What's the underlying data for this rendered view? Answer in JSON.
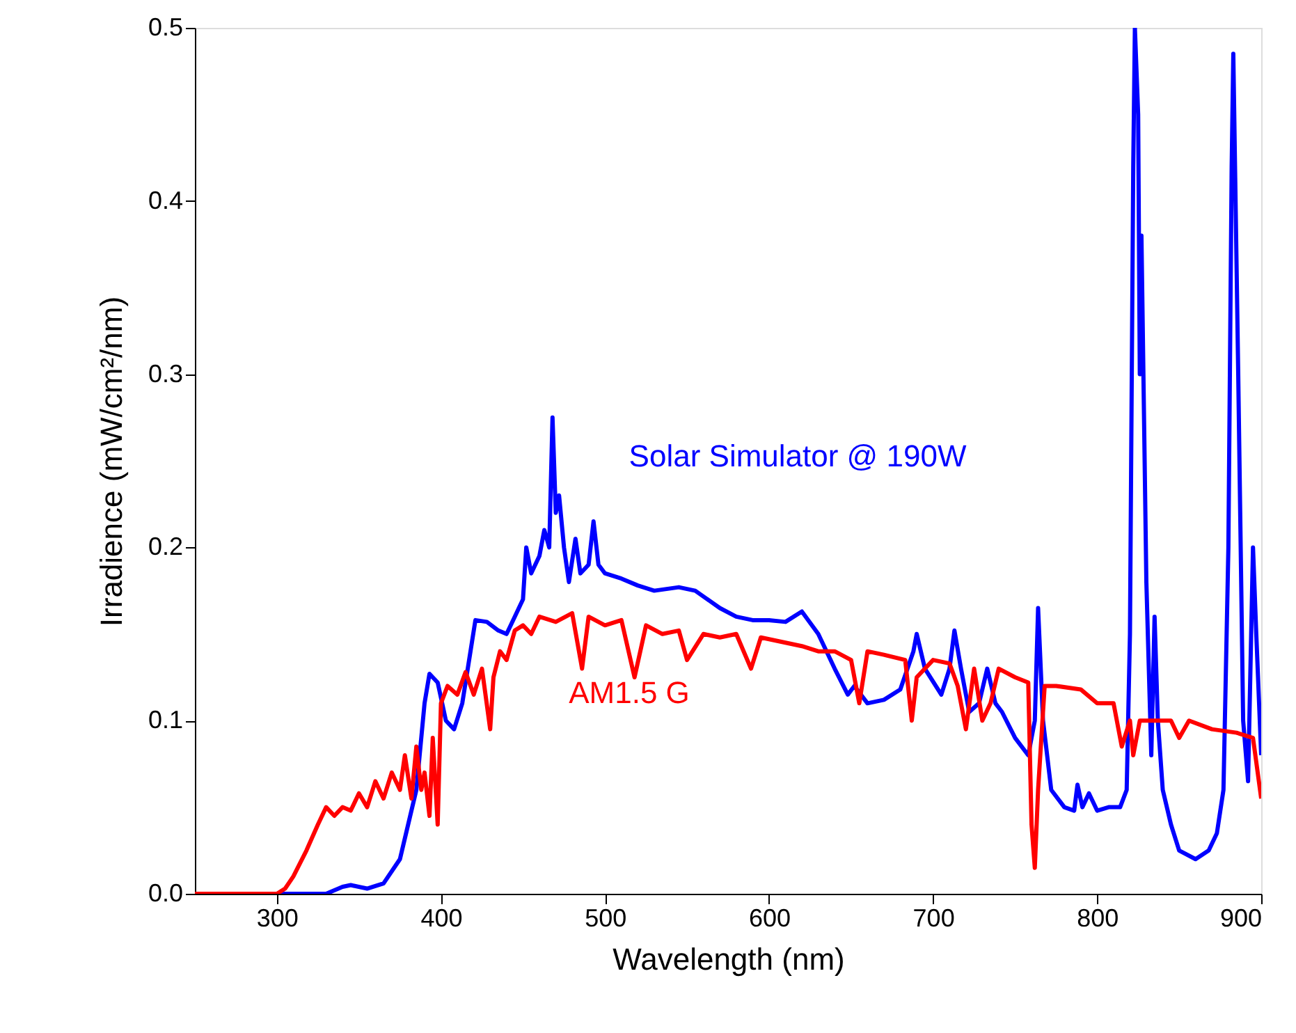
{
  "chart_data": {
    "type": "line",
    "xlabel": "Wavelength (nm)",
    "ylabel": "Irradience (mW/cm²/nm)",
    "xlim": [
      250,
      900
    ],
    "xticks": [
      300,
      400,
      500,
      600,
      700,
      800,
      900
    ],
    "ylim": [
      0,
      0.5
    ],
    "yticks": [
      {
        "value": 0,
        "label": "0.0"
      },
      0.1,
      0.2,
      0.3,
      0.4,
      0.5
    ],
    "grid": false,
    "legend": false,
    "marker": "none",
    "line_style": "solid",
    "series": [
      {
        "name": "Solar Simulator @ 190W",
        "color": "#0000ff",
        "x": [
          250,
          330,
          340,
          345,
          355,
          365,
          375,
          385,
          390,
          393,
          398,
          403,
          408,
          413,
          418,
          421,
          428,
          435,
          440,
          445,
          450,
          452,
          455,
          460,
          463,
          466,
          468,
          470,
          472,
          475,
          478,
          482,
          485,
          490,
          493,
          496,
          500,
          510,
          520,
          530,
          545,
          555,
          570,
          580,
          590,
          600,
          610,
          620,
          630,
          640,
          648,
          652,
          660,
          670,
          680,
          688,
          690,
          695,
          705,
          710,
          713,
          717,
          722,
          728,
          733,
          738,
          742,
          750,
          758,
          762,
          764,
          767,
          772,
          780,
          786,
          788,
          791,
          795,
          800,
          807,
          814,
          818,
          820,
          822,
          823,
          825,
          826,
          827,
          830,
          833,
          835,
          837,
          840,
          845,
          850,
          860,
          868,
          873,
          877,
          880,
          882,
          883,
          886,
          889,
          892,
          895,
          897,
          900
        ],
        "values": [
          0,
          0,
          0.004,
          0.005,
          0.003,
          0.006,
          0.02,
          0.06,
          0.11,
          0.127,
          0.122,
          0.1,
          0.095,
          0.11,
          0.14,
          0.158,
          0.157,
          0.152,
          0.15,
          0.16,
          0.17,
          0.2,
          0.185,
          0.195,
          0.21,
          0.2,
          0.275,
          0.22,
          0.23,
          0.2,
          0.18,
          0.205,
          0.185,
          0.19,
          0.215,
          0.19,
          0.185,
          0.182,
          0.178,
          0.175,
          0.177,
          0.175,
          0.165,
          0.16,
          0.158,
          0.158,
          0.157,
          0.163,
          0.15,
          0.13,
          0.115,
          0.12,
          0.11,
          0.112,
          0.118,
          0.14,
          0.15,
          0.13,
          0.115,
          0.13,
          0.152,
          0.13,
          0.105,
          0.11,
          0.13,
          0.11,
          0.105,
          0.09,
          0.08,
          0.1,
          0.165,
          0.1,
          0.06,
          0.05,
          0.048,
          0.063,
          0.05,
          0.058,
          0.048,
          0.05,
          0.05,
          0.06,
          0.15,
          0.42,
          0.5,
          0.45,
          0.3,
          0.38,
          0.18,
          0.08,
          0.16,
          0.1,
          0.06,
          0.04,
          0.025,
          0.02,
          0.025,
          0.035,
          0.06,
          0.2,
          0.42,
          0.485,
          0.3,
          0.1,
          0.065,
          0.2,
          0.15,
          0.08
        ]
      },
      {
        "name": "AM1.5 G",
        "color": "#ff0000",
        "x": [
          250,
          280,
          300,
          305,
          310,
          318,
          325,
          330,
          335,
          340,
          345,
          350,
          355,
          360,
          365,
          370,
          375,
          378,
          382,
          385,
          388,
          390,
          393,
          395,
          398,
          400,
          404,
          410,
          415,
          420,
          425,
          430,
          432,
          436,
          440,
          445,
          450,
          455,
          460,
          470,
          480,
          486,
          490,
          500,
          510,
          518,
          525,
          535,
          545,
          550,
          560,
          570,
          580,
          589,
          595,
          610,
          620,
          630,
          640,
          650,
          655,
          660,
          670,
          683,
          687,
          690,
          700,
          710,
          715,
          720,
          725,
          730,
          735,
          740,
          750,
          758,
          760,
          762,
          764,
          768,
          775,
          790,
          800,
          810,
          815,
          820,
          822,
          826,
          835,
          845,
          850,
          856,
          870,
          885,
          895,
          900
        ],
        "values": [
          0,
          0,
          0,
          0.003,
          0.01,
          0.025,
          0.04,
          0.05,
          0.045,
          0.05,
          0.048,
          0.058,
          0.05,
          0.065,
          0.055,
          0.07,
          0.06,
          0.08,
          0.055,
          0.085,
          0.06,
          0.07,
          0.045,
          0.09,
          0.04,
          0.11,
          0.12,
          0.115,
          0.128,
          0.115,
          0.13,
          0.095,
          0.125,
          0.14,
          0.135,
          0.152,
          0.155,
          0.15,
          0.16,
          0.157,
          0.162,
          0.13,
          0.16,
          0.155,
          0.158,
          0.125,
          0.155,
          0.15,
          0.152,
          0.135,
          0.15,
          0.148,
          0.15,
          0.13,
          0.148,
          0.145,
          0.143,
          0.14,
          0.14,
          0.135,
          0.11,
          0.14,
          0.138,
          0.135,
          0.1,
          0.125,
          0.135,
          0.133,
          0.12,
          0.095,
          0.13,
          0.1,
          0.11,
          0.13,
          0.125,
          0.122,
          0.04,
          0.015,
          0.06,
          0.12,
          0.12,
          0.118,
          0.11,
          0.11,
          0.085,
          0.1,
          0.08,
          0.1,
          0.1,
          0.1,
          0.09,
          0.1,
          0.095,
          0.093,
          0.09,
          0.055
        ]
      }
    ]
  }
}
